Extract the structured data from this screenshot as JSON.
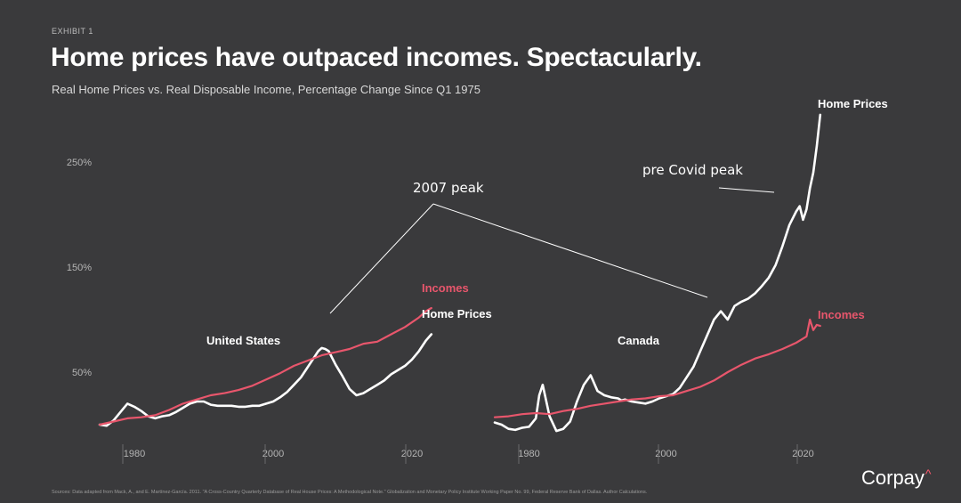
{
  "header": {
    "exhibit": "EXHIBIT 1",
    "title": "Home prices have outpaced incomes. Spectacularly.",
    "subtitle": "Real Home Prices vs. Real Disposable Income, Percentage Change Since Q1 1975"
  },
  "footer": {
    "source": "Sources: Data adapted from Mack, A., and E. Martínez-García. 2011. \"A Cross-Country Quarterly Database of Real House Prices: A Methodological Note.\" Globalization and Monetary Policy Institute Working Paper No. 99, Federal Reserve Bank of Dallas. Author Calculations.",
    "logo": "Corpay",
    "logo_mark": "^"
  },
  "colors": {
    "background": "#3a3a3c",
    "home_prices": "#ffffff",
    "incomes": "#e8566c",
    "annotation": "#ffffff"
  },
  "annotations": {
    "peak_2007": "2007 peak",
    "pre_covid_peak": "pre Covid peak"
  },
  "chart_data": [
    {
      "type": "line",
      "country": "United States",
      "ylim": [
        -10,
        300
      ],
      "yticks": [
        50,
        150,
        250
      ],
      "ytick_labels": [
        "50%",
        "150%",
        "250%"
      ],
      "xlim": [
        1975,
        2023
      ],
      "xticks": [
        1980,
        2000,
        2020
      ],
      "xtick_labels": [
        "1980",
        "2000",
        "2020"
      ],
      "grid": false,
      "series": [
        {
          "name": "Home Prices",
          "x": [
            1975,
            1976,
            1977,
            1978,
            1979,
            1980,
            1981,
            1982,
            1983,
            1984,
            1985,
            1986,
            1987,
            1988,
            1989,
            1990,
            1991,
            1992,
            1993,
            1994,
            1995,
            1996,
            1997,
            1998,
            1999,
            2000,
            2001,
            2002,
            2003,
            2004,
            2005,
            2006,
            2006.5,
            2007,
            2007.5,
            2008,
            2009,
            2010,
            2011,
            2012,
            2013,
            2014,
            2015,
            2016,
            2017,
            2018,
            2019,
            2020,
            2021,
            2022,
            2022.8
          ],
          "values": [
            0,
            -1,
            4,
            12,
            20,
            17,
            13,
            8,
            6,
            8,
            9,
            12,
            16,
            20,
            22,
            22,
            19,
            18,
            18,
            18,
            17,
            17,
            18,
            18,
            20,
            22,
            26,
            31,
            38,
            45,
            55,
            65,
            70,
            73,
            72,
            70,
            57,
            46,
            34,
            28,
            30,
            34,
            38,
            42,
            48,
            52,
            56,
            62,
            70,
            80,
            86
          ]
        },
        {
          "name": "Incomes",
          "x": [
            1975,
            1977,
            1979,
            1981,
            1983,
            1985,
            1987,
            1989,
            1991,
            1993,
            1995,
            1997,
            1999,
            2001,
            2003,
            2005,
            2007,
            2009,
            2011,
            2013,
            2015,
            2017,
            2019,
            2021,
            2022,
            2022.8
          ],
          "values": [
            0,
            3,
            6,
            7,
            9,
            14,
            20,
            24,
            28,
            30,
            33,
            37,
            43,
            49,
            56,
            61,
            66,
            69,
            72,
            77,
            79,
            86,
            93,
            102,
            108,
            111
          ]
        }
      ]
    },
    {
      "type": "line",
      "country": "Canada",
      "ylim": [
        -10,
        300
      ],
      "xlim": [
        1975,
        2023
      ],
      "xticks": [
        1980,
        2000,
        2020
      ],
      "xtick_labels": [
        "1980",
        "2000",
        "2020"
      ],
      "grid": false,
      "series": [
        {
          "name": "Home Prices",
          "x": [
            1975,
            1976,
            1977,
            1978,
            1979,
            1980,
            1981,
            1981.5,
            1982,
            1983,
            1984,
            1985,
            1986,
            1987,
            1988,
            1989,
            1990,
            1991,
            1992,
            1993,
            1993.5,
            1994,
            1995,
            1996,
            1997,
            1998,
            1999,
            2000,
            2001,
            2002,
            2003,
            2004,
            2005,
            2006,
            2007,
            2008,
            2009,
            2010,
            2011,
            2012,
            2013,
            2014,
            2015,
            2016,
            2017,
            2018,
            2019,
            2019.5,
            2020,
            2020.5,
            2021,
            2021.5,
            2022,
            2022.5
          ],
          "values": [
            2,
            0,
            -4,
            -5,
            -3,
            -2,
            6,
            28,
            38,
            8,
            -6,
            -4,
            3,
            22,
            38,
            47,
            32,
            28,
            26,
            25,
            23,
            24,
            22,
            21,
            20,
            22,
            25,
            27,
            29,
            35,
            45,
            55,
            70,
            85,
            100,
            108,
            100,
            113,
            117,
            120,
            125,
            132,
            140,
            152,
            170,
            190,
            203,
            208,
            195,
            205,
            225,
            240,
            265,
            295
          ]
        },
        {
          "name": "Incomes",
          "x": [
            1975,
            1977,
            1979,
            1981,
            1983,
            1985,
            1987,
            1989,
            1991,
            1993,
            1995,
            1997,
            1999,
            2001,
            2003,
            2005,
            2007,
            2009,
            2011,
            2013,
            2015,
            2017,
            2019,
            2020.5,
            2021,
            2021.5,
            2022,
            2022.5
          ],
          "values": [
            7,
            8,
            10,
            11,
            10,
            13,
            15,
            18,
            20,
            22,
            24,
            25,
            27,
            28,
            32,
            36,
            42,
            50,
            57,
            63,
            67,
            72,
            78,
            84,
            100,
            90,
            95,
            94
          ]
        }
      ]
    }
  ]
}
